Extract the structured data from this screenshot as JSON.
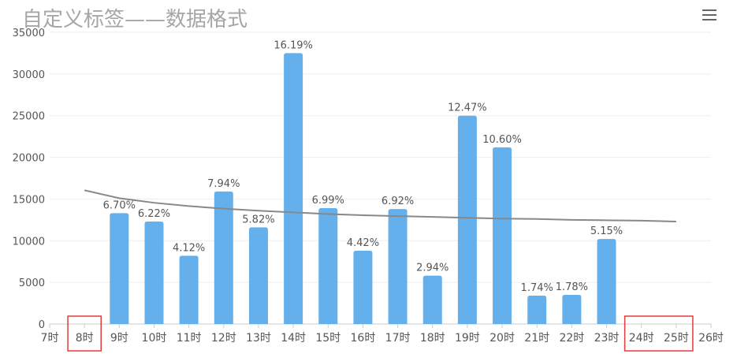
{
  "title": "自定义标签——数据格式",
  "icons": {
    "menu": "hamburger-menu-icon"
  },
  "colors": {
    "bar": "#64b0ec",
    "trend": "#888888",
    "grid": "#eeeeee",
    "highlight": "#e23b3b",
    "axis": "#cccccc"
  },
  "chart_data": {
    "type": "bar",
    "title": "自定义标签——数据格式",
    "xlabel": "",
    "ylabel": "",
    "ylim": [
      0,
      35000
    ],
    "yticks": [
      0,
      5000,
      10000,
      15000,
      20000,
      25000,
      30000,
      35000
    ],
    "grid": true,
    "legend": "none",
    "x": [
      7,
      8,
      9,
      10,
      11,
      12,
      13,
      14,
      15,
      16,
      17,
      18,
      19,
      20,
      21,
      22,
      23,
      24,
      25,
      26
    ],
    "categories": [
      "7时",
      "8时",
      "9时",
      "10时",
      "11时",
      "12时",
      "13时",
      "14时",
      "15时",
      "16时",
      "17时",
      "18时",
      "19时",
      "20时",
      "21时",
      "22时",
      "23时",
      "24时",
      "25时",
      "26时"
    ],
    "series": [
      {
        "type": "bar",
        "values": [
          null,
          null,
          13300,
          12300,
          8200,
          15900,
          11600,
          32500,
          13900,
          8800,
          13800,
          5800,
          25000,
          21200,
          3400,
          3500,
          10200,
          null,
          null,
          null
        ],
        "data_labels": [
          "",
          "",
          "6.70%",
          "6.22%",
          "4.12%",
          "7.94%",
          "5.82%",
          "16.19%",
          "6.99%",
          "4.42%",
          "6.92%",
          "2.94%",
          "12.47%",
          "10.60%",
          "1.74%",
          "1.78%",
          "5.15%",
          "",
          "",
          ""
        ]
      },
      {
        "type": "line",
        "x": [
          8,
          9,
          10,
          11,
          12,
          13,
          14,
          15,
          16,
          17,
          18,
          19,
          20,
          21,
          22,
          23,
          24,
          25
        ],
        "values": [
          16050,
          15100,
          14550,
          14150,
          13850,
          13600,
          13400,
          13200,
          13050,
          12950,
          12850,
          12750,
          12650,
          12600,
          12500,
          12450,
          12400,
          12300
        ]
      }
    ],
    "highlighted_categories": [
      "8时",
      "24时",
      "25时"
    ]
  }
}
